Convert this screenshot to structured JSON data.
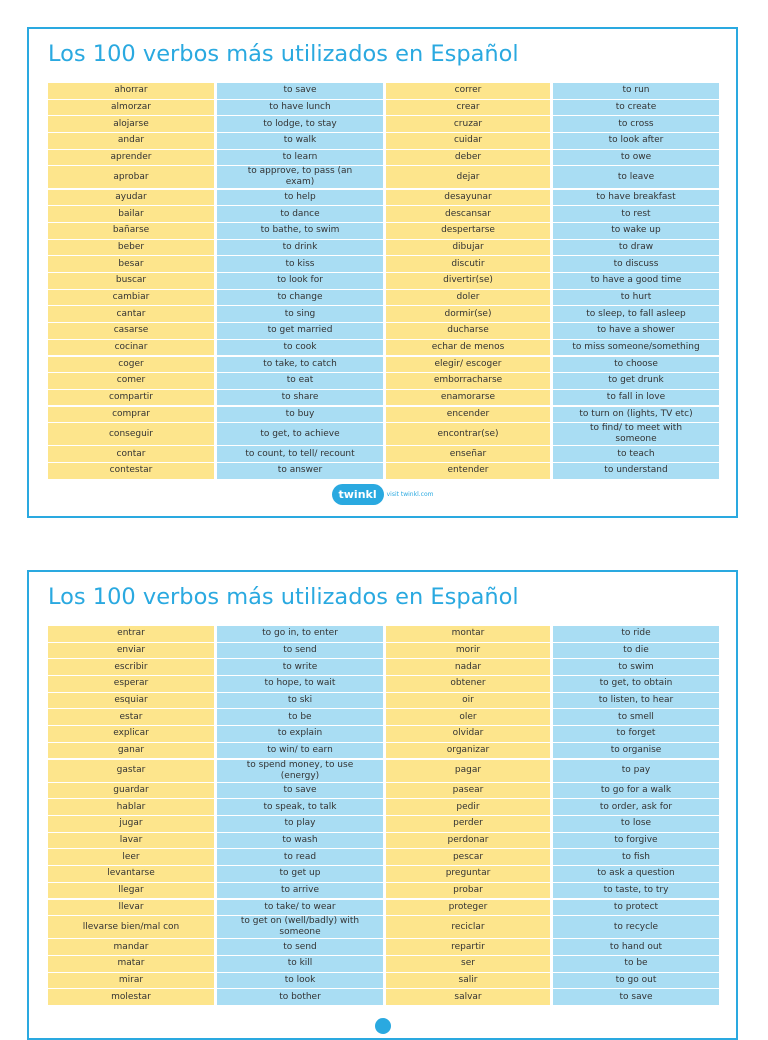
{
  "pages": [
    {
      "title": "Los 100 verbos más utilizados en Español",
      "rows": [
        [
          "ahorrar",
          "to save",
          "correr",
          "to run"
        ],
        [
          "almorzar",
          "to have lunch",
          "crear",
          "to create"
        ],
        [
          "alojarse",
          "to lodge, to stay",
          "cruzar",
          "to cross"
        ],
        [
          "andar",
          "to walk",
          "cuidar",
          "to look after"
        ],
        [
          "aprender",
          "to learn",
          "deber",
          "to owe"
        ],
        [
          "aprobar",
          "to approve, to pass (an exam)",
          "dejar",
          "to leave"
        ],
        [
          "ayudar",
          "to help",
          "desayunar",
          "to have breakfast"
        ],
        [
          "bailar",
          "to dance",
          "descansar",
          "to rest"
        ],
        [
          "bañarse",
          "to bathe, to swim",
          "despertarse",
          "to wake up"
        ],
        [
          "beber",
          "to drink",
          "dibujar",
          "to draw"
        ],
        [
          "besar",
          "to kiss",
          "discutir",
          "to discuss"
        ],
        [
          "buscar",
          "to look for",
          "divertir(se)",
          "to have a good time"
        ],
        [
          "cambiar",
          "to change",
          "doler",
          "to hurt"
        ],
        [
          "cantar",
          "to sing",
          "dormir(se)",
          "to sleep, to fall asleep"
        ],
        [
          "casarse",
          "to get married",
          "ducharse",
          "to have a shower"
        ],
        [
          "cocinar",
          "to cook",
          "echar de menos",
          "to miss someone/something"
        ],
        [
          "coger",
          "to take, to catch",
          "elegir/ escoger",
          "to choose"
        ],
        [
          "comer",
          "to eat",
          "emborracharse",
          "to get drunk"
        ],
        [
          "compartir",
          "to share",
          "enamorarse",
          "to fall in love"
        ],
        [
          "comprar",
          "to buy",
          "encender",
          "to turn on (lights, TV etc)"
        ],
        [
          "conseguir",
          "to get, to achieve",
          "encontrar(se)",
          "to find/ to meet with someone"
        ],
        [
          "contar",
          "to count, to tell/ recount",
          "enseñar",
          "to teach"
        ],
        [
          "contestar",
          "to answer",
          "entender",
          "to understand"
        ]
      ],
      "footer": {
        "logo": "twinkl",
        "link": "visit twinkl.com"
      }
    },
    {
      "title": "Los 100 verbos más utilizados en Español",
      "rows": [
        [
          "entrar",
          "to go in, to enter",
          "montar",
          "to ride"
        ],
        [
          "enviar",
          "to send",
          "morir",
          "to die"
        ],
        [
          "escribir",
          "to write",
          "nadar",
          "to swim"
        ],
        [
          "esperar",
          "to hope, to wait",
          "obtener",
          "to get, to obtain"
        ],
        [
          "esquiar",
          "to ski",
          "oir",
          "to listen, to hear"
        ],
        [
          "estar",
          "to be",
          "oler",
          "to smell"
        ],
        [
          "explicar",
          "to explain",
          "olvidar",
          "to forget"
        ],
        [
          "ganar",
          "to win/ to earn",
          "organizar",
          "to organise"
        ],
        [
          "gastar",
          "to spend money, to use (energy)",
          "pagar",
          "to pay"
        ],
        [
          "guardar",
          "to save",
          "pasear",
          "to go for a walk"
        ],
        [
          "hablar",
          "to speak, to talk",
          "pedir",
          "to order, ask for"
        ],
        [
          "jugar",
          "to play",
          "perder",
          "to lose"
        ],
        [
          "lavar",
          "to wash",
          "perdonar",
          "to forgive"
        ],
        [
          "leer",
          "to read",
          "pescar",
          "to fish"
        ],
        [
          "levantarse",
          "to get up",
          "preguntar",
          "to ask a question"
        ],
        [
          "llegar",
          "to arrive",
          "probar",
          "to taste, to try"
        ],
        [
          "llevar",
          "to take/ to wear",
          "proteger",
          "to protect"
        ],
        [
          "llevarse bien/mal con",
          "to get on (well/badly) with someone",
          "reciclar",
          "to recycle"
        ],
        [
          "mandar",
          "to send",
          "repartir",
          "to hand out"
        ],
        [
          "matar",
          "to kill",
          "ser",
          "to be"
        ],
        [
          "mirar",
          "to look",
          "salir",
          "to go out"
        ],
        [
          "molestar",
          "to bother",
          "salvar",
          "to save"
        ]
      ]
    }
  ]
}
